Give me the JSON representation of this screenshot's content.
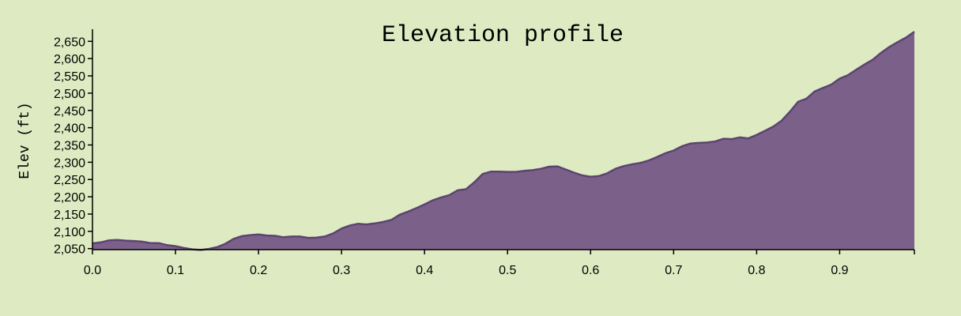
{
  "colors": {
    "background": "#deebc2",
    "area_fill": "#7b6189",
    "area_stroke": "#5c4470",
    "axis": "#000000"
  },
  "chart_data": {
    "type": "area",
    "title": "Elevation profile",
    "xlabel": "",
    "ylabel": "Elev (ft)",
    "xlim": [
      0.0,
      0.99
    ],
    "ylim": [
      2047,
      2685
    ],
    "grid": false,
    "x_ticks": [
      "0.0",
      "0.1",
      "0.2",
      "0.3",
      "0.4",
      "0.5",
      "0.6",
      "0.7",
      "0.8",
      "0.9"
    ],
    "y_ticks": [
      "2,050",
      "2,100",
      "2,150",
      "2,200",
      "2,250",
      "2,300",
      "2,350",
      "2,400",
      "2,450",
      "2,500",
      "2,550",
      "2,600",
      "2,650"
    ],
    "series": [
      {
        "x": [
          0.0,
          0.01,
          0.02,
          0.03,
          0.04,
          0.05,
          0.06,
          0.07,
          0.08,
          0.09,
          0.1,
          0.11,
          0.12,
          0.13,
          0.14,
          0.15,
          0.16,
          0.17,
          0.18,
          0.19,
          0.2,
          0.21,
          0.22,
          0.23,
          0.24,
          0.25,
          0.26,
          0.27,
          0.28,
          0.29,
          0.3,
          0.31,
          0.32,
          0.33,
          0.34,
          0.35,
          0.36,
          0.37,
          0.38,
          0.39,
          0.4,
          0.41,
          0.42,
          0.43,
          0.44,
          0.45,
          0.46,
          0.47,
          0.48,
          0.49,
          0.5,
          0.51,
          0.52,
          0.53,
          0.54,
          0.55,
          0.56,
          0.57,
          0.58,
          0.59,
          0.6,
          0.61,
          0.62,
          0.63,
          0.64,
          0.65,
          0.66,
          0.67,
          0.68,
          0.69,
          0.7,
          0.71,
          0.72,
          0.73,
          0.74,
          0.75,
          0.76,
          0.77,
          0.78,
          0.79,
          0.8,
          0.81,
          0.82,
          0.83,
          0.84,
          0.85,
          0.86,
          0.87,
          0.88,
          0.89,
          0.9,
          0.91,
          0.92,
          0.93,
          0.94,
          0.95,
          0.96,
          0.97,
          0.98,
          0.99
        ],
        "values": [
          2065,
          2068,
          2074,
          2075,
          2073,
          2072,
          2070,
          2066,
          2066,
          2060,
          2057,
          2052,
          2048,
          2046,
          2049,
          2054,
          2064,
          2078,
          2086,
          2089,
          2091,
          2088,
          2087,
          2083,
          2085,
          2085,
          2081,
          2082,
          2085,
          2094,
          2108,
          2117,
          2122,
          2120,
          2123,
          2127,
          2133,
          2148,
          2157,
          2167,
          2178,
          2190,
          2198,
          2205,
          2219,
          2222,
          2242,
          2266,
          2273,
          2273,
          2272,
          2272,
          2275,
          2277,
          2281,
          2287,
          2288,
          2279,
          2270,
          2262,
          2258,
          2260,
          2268,
          2281,
          2289,
          2294,
          2298,
          2305,
          2315,
          2326,
          2334,
          2346,
          2354,
          2356,
          2357,
          2360,
          2368,
          2367,
          2372,
          2369,
          2379,
          2391,
          2403,
          2420,
          2446,
          2475,
          2484,
          2505,
          2515,
          2525,
          2542,
          2552,
          2568,
          2583,
          2597,
          2617,
          2634,
          2648,
          2661,
          2678
        ]
      }
    ]
  }
}
